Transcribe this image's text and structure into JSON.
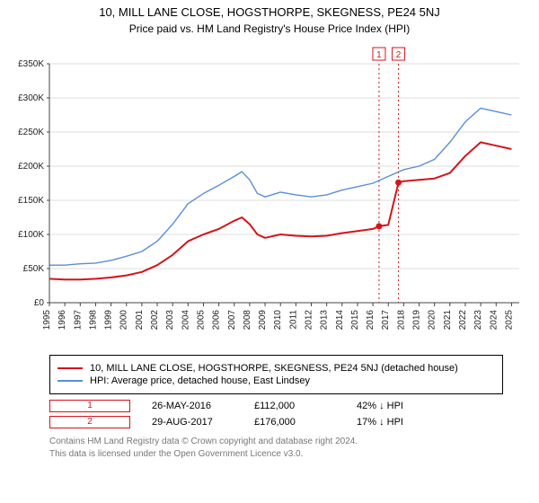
{
  "title": "10, MILL LANE CLOSE, HOGSTHORPE, SKEGNESS, PE24 5NJ",
  "subtitle": "Price paid vs. HM Land Registry's House Price Index (HPI)",
  "chart": {
    "type": "line",
    "background_color": "#ffffff",
    "grid_color": "#dddddd",
    "axis_color": "#444444",
    "xlim": [
      1995,
      2025.5
    ],
    "ylim": [
      0,
      350000
    ],
    "ytick_step": 50000,
    "ytick_labels": [
      "£0",
      "£50K",
      "£100K",
      "£150K",
      "£200K",
      "£250K",
      "£300K",
      "£350K"
    ],
    "xticks": [
      1995,
      1996,
      1997,
      1998,
      1999,
      2000,
      2001,
      2002,
      2003,
      2004,
      2005,
      2006,
      2007,
      2008,
      2009,
      2010,
      2011,
      2012,
      2013,
      2014,
      2015,
      2016,
      2017,
      2018,
      2019,
      2020,
      2021,
      2022,
      2023,
      2024,
      2025
    ],
    "series": [
      {
        "id": "property",
        "label": "10, MILL LANE CLOSE, HOGSTHORPE, SKEGNESS, PE24 5NJ (detached house)",
        "color": "#d4141a",
        "line_width": 2,
        "data": [
          [
            1995,
            35000
          ],
          [
            1996,
            34000
          ],
          [
            1997,
            34000
          ],
          [
            1998,
            35000
          ],
          [
            1999,
            37000
          ],
          [
            2000,
            40000
          ],
          [
            2001,
            45000
          ],
          [
            2002,
            55000
          ],
          [
            2003,
            70000
          ],
          [
            2004,
            90000
          ],
          [
            2005,
            100000
          ],
          [
            2006,
            108000
          ],
          [
            2007,
            120000
          ],
          [
            2007.5,
            125000
          ],
          [
            2008,
            115000
          ],
          [
            2008.5,
            100000
          ],
          [
            2009,
            95000
          ],
          [
            2010,
            100000
          ],
          [
            2011,
            98000
          ],
          [
            2012,
            97000
          ],
          [
            2013,
            98000
          ],
          [
            2014,
            102000
          ],
          [
            2015,
            105000
          ],
          [
            2016,
            108000
          ],
          [
            2016.4,
            112000
          ],
          [
            2017,
            114000
          ],
          [
            2017.66,
            176000
          ],
          [
            2018,
            178000
          ],
          [
            2019,
            180000
          ],
          [
            2020,
            182000
          ],
          [
            2021,
            190000
          ],
          [
            2022,
            215000
          ],
          [
            2023,
            235000
          ],
          [
            2024,
            230000
          ],
          [
            2025,
            225000
          ]
        ]
      },
      {
        "id": "hpi",
        "label": "HPI: Average price, detached house, East Lindsey",
        "color": "#5a8fd6",
        "line_width": 1.4,
        "data": [
          [
            1995,
            55000
          ],
          [
            1996,
            55000
          ],
          [
            1997,
            57000
          ],
          [
            1998,
            58000
          ],
          [
            1999,
            62000
          ],
          [
            2000,
            68000
          ],
          [
            2001,
            75000
          ],
          [
            2002,
            90000
          ],
          [
            2003,
            115000
          ],
          [
            2004,
            145000
          ],
          [
            2005,
            160000
          ],
          [
            2006,
            172000
          ],
          [
            2007,
            185000
          ],
          [
            2007.5,
            192000
          ],
          [
            2008,
            180000
          ],
          [
            2008.5,
            160000
          ],
          [
            2009,
            155000
          ],
          [
            2010,
            162000
          ],
          [
            2011,
            158000
          ],
          [
            2012,
            155000
          ],
          [
            2013,
            158000
          ],
          [
            2014,
            165000
          ],
          [
            2015,
            170000
          ],
          [
            2016,
            175000
          ],
          [
            2017,
            185000
          ],
          [
            2018,
            195000
          ],
          [
            2019,
            200000
          ],
          [
            2020,
            210000
          ],
          [
            2021,
            235000
          ],
          [
            2022,
            265000
          ],
          [
            2023,
            285000
          ],
          [
            2024,
            280000
          ],
          [
            2025,
            275000
          ]
        ]
      }
    ],
    "event_markers": [
      {
        "n": "1",
        "x": 2016.4,
        "y": 112000,
        "color": "#d4141a",
        "line_style": "dotted"
      },
      {
        "n": "2",
        "x": 2017.66,
        "y": 176000,
        "color": "#d4141a",
        "line_style": "dotted"
      }
    ]
  },
  "legend": {
    "border_color": "#000000",
    "items": [
      {
        "color": "#d4141a",
        "label_ref": "property"
      },
      {
        "color": "#5a8fd6",
        "label_ref": "hpi"
      }
    ]
  },
  "events_table": [
    {
      "n": "1",
      "color": "#d4141a",
      "date": "26-MAY-2016",
      "price": "£112,000",
      "delta": "42% ↓ HPI"
    },
    {
      "n": "2",
      "color": "#d4141a",
      "date": "29-AUG-2017",
      "price": "£176,000",
      "delta": "17% ↓ HPI"
    }
  ],
  "footnote_line1": "Contains HM Land Registry data © Crown copyright and database right 2024.",
  "footnote_line2": "This data is licensed under the Open Government Licence v3.0.",
  "label_fontsize": 11,
  "tick_fontsize": 10
}
